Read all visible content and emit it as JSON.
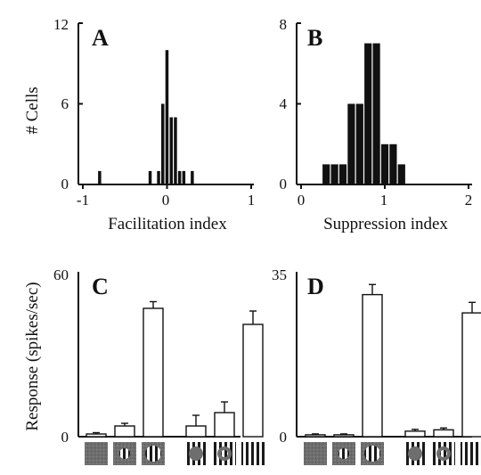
{
  "chart_data": [
    {
      "panel": "A",
      "type": "bar",
      "xlabel": "Facilitation index",
      "ylabel": "# Cells",
      "xlim": [
        -1,
        1
      ],
      "ylim": [
        0,
        12
      ],
      "xticks": [
        "-1",
        "0",
        "1"
      ],
      "yticks": [
        "0",
        "6",
        "12"
      ],
      "bin_width": 0.05,
      "x": [
        -0.8,
        -0.2,
        -0.1,
        -0.05,
        0.0,
        0.05,
        0.1,
        0.15,
        0.2,
        0.3
      ],
      "values": [
        1,
        1,
        1,
        6,
        10,
        5,
        5,
        1,
        1,
        1
      ]
    },
    {
      "panel": "B",
      "type": "bar",
      "xlabel": "Suppression index",
      "ylabel": "",
      "xlim": [
        0,
        2
      ],
      "ylim": [
        0,
        8
      ],
      "xticks": [
        "0",
        "1",
        "2"
      ],
      "yticks": [
        "0",
        "4",
        "8"
      ],
      "bin_width": 0.1,
      "x": [
        0.3,
        0.4,
        0.5,
        0.6,
        0.7,
        0.8,
        0.9,
        1.0,
        1.1,
        1.2
      ],
      "values": [
        1,
        1,
        1,
        4,
        4,
        7,
        7,
        2,
        2,
        1
      ]
    },
    {
      "panel": "C",
      "type": "bar",
      "xlabel": "",
      "ylabel": "Response (spikes/sec)",
      "ylim": [
        0,
        60
      ],
      "yticks": [
        "0",
        "60"
      ],
      "stimuli": [
        "gray",
        "small-grating",
        "grating",
        "gray-annulus",
        "annulus-grating",
        "full-grating"
      ],
      "values": [
        1,
        4,
        48,
        4,
        9,
        42
      ],
      "errors": [
        0.5,
        1,
        2.5,
        4,
        4,
        5
      ]
    },
    {
      "panel": "D",
      "type": "bar",
      "xlabel": "",
      "ylabel": "",
      "ylim": [
        0,
        35
      ],
      "yticks": [
        "0",
        "35"
      ],
      "stimuli": [
        "gray",
        "small-grating",
        "grating",
        "gray-annulus",
        "annulus-grating",
        "full-grating"
      ],
      "values": [
        0.4,
        0.4,
        31,
        1.2,
        1.5,
        27
      ],
      "errors": [
        0.2,
        0.2,
        2.2,
        0.4,
        0.4,
        2.3
      ]
    }
  ]
}
